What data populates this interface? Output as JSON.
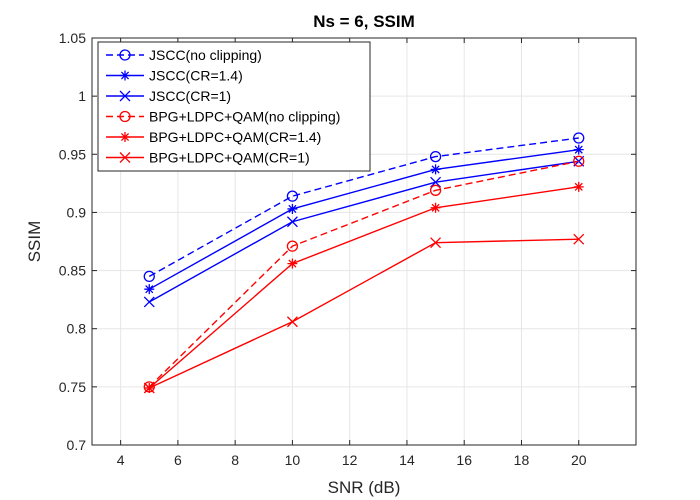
{
  "chart_data": {
    "type": "line",
    "title": "Ns = 6, SSIM",
    "xlabel": "SNR (dB)",
    "ylabel": "SSIM",
    "xlim": [
      3,
      22
    ],
    "ylim": [
      0.7,
      1.05
    ],
    "grid": true,
    "legend_position": "top-left",
    "x_ticks": [
      4,
      6,
      8,
      10,
      12,
      14,
      16,
      18,
      20
    ],
    "y_ticks": [
      0.7,
      0.75,
      0.8,
      0.85,
      0.9,
      0.95,
      1,
      1.05
    ],
    "x_tick_labels": [
      "4",
      "6",
      "8",
      "10",
      "12",
      "14",
      "16",
      "18",
      "20"
    ],
    "y_tick_labels": [
      "0.7",
      "0.75",
      "0.8",
      "0.85",
      "0.9",
      "0.95",
      "1",
      "1.05"
    ],
    "x": [
      5,
      10,
      15,
      20
    ],
    "series": [
      {
        "name": "JSCC(no clipping)",
        "values": [
          0.845,
          0.914,
          0.948,
          0.964
        ],
        "color": "#0000ff",
        "dash": "dashed",
        "marker": "circle"
      },
      {
        "name": "JSCC(CR=1.4)",
        "values": [
          0.834,
          0.903,
          0.937,
          0.954
        ],
        "color": "#0000ff",
        "dash": "solid",
        "marker": "asterisk"
      },
      {
        "name": "JSCC(CR=1)",
        "values": [
          0.823,
          0.892,
          0.926,
          0.944
        ],
        "color": "#0000ff",
        "dash": "solid",
        "marker": "cross"
      },
      {
        "name": "BPG+LDPC+QAM(no clipping)",
        "values": [
          0.75,
          0.871,
          0.919,
          0.944
        ],
        "color": "#ff0000",
        "dash": "dashed",
        "marker": "circle"
      },
      {
        "name": "BPG+LDPC+QAM(CR=1.4)",
        "values": [
          0.749,
          0.856,
          0.904,
          0.922
        ],
        "color": "#ff0000",
        "dash": "solid",
        "marker": "asterisk"
      },
      {
        "name": "BPG+LDPC+QAM(CR=1)",
        "values": [
          0.749,
          0.806,
          0.874,
          0.877
        ],
        "color": "#ff0000",
        "dash": "solid",
        "marker": "cross"
      }
    ]
  }
}
